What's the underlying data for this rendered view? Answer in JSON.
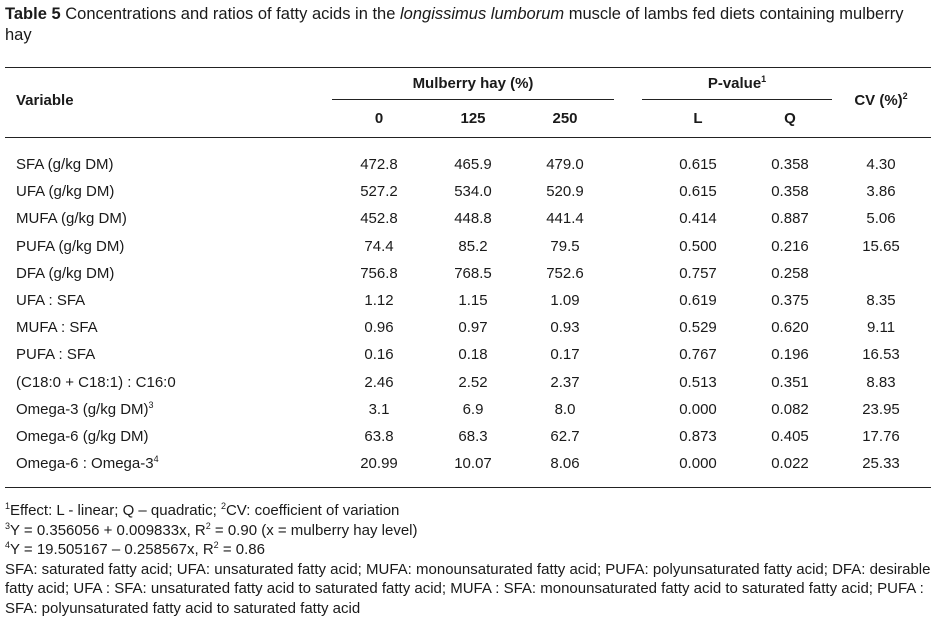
{
  "caption": {
    "label": "Table 5",
    "text_before": " Concentrations and ratios of fatty acids in the ",
    "italic": "longissimus lumborum",
    "text_after": " muscle of lambs fed diets containing mulberry hay"
  },
  "header": {
    "variable": "Variable",
    "mulberry": "Mulberry hay (%)",
    "pvalue": "P-value",
    "pvalue_sup": "1",
    "cv": "CV (%)",
    "cv_sup": "2",
    "sub": [
      "0",
      "125",
      "250",
      "L",
      "Q"
    ]
  },
  "rows": [
    {
      "label": "SFA (g/kg DM)",
      "sup": "",
      "v": [
        "472.8",
        "465.9",
        "479.0",
        "0.615",
        "0.358",
        "4.30"
      ]
    },
    {
      "label": "UFA (g/kg DM)",
      "sup": "",
      "v": [
        "527.2",
        "534.0",
        "520.9",
        "0.615",
        "0.358",
        "3.86"
      ]
    },
    {
      "label": "MUFA (g/kg DM)",
      "sup": "",
      "v": [
        "452.8",
        "448.8",
        "441.4",
        "0.414",
        "0.887",
        "5.06"
      ]
    },
    {
      "label": "PUFA (g/kg DM)",
      "sup": "",
      "v": [
        "74.4",
        "85.2",
        "79.5",
        "0.500",
        "0.216",
        "15.65"
      ]
    },
    {
      "label": "DFA (g/kg DM)",
      "sup": "",
      "v": [
        "756.8",
        "768.5",
        "752.6",
        "0.757",
        "0.258",
        ""
      ]
    },
    {
      "label": "UFA : SFA",
      "sup": "",
      "v": [
        "1.12",
        "1.15",
        "1.09",
        "0.619",
        "0.375",
        "8.35"
      ]
    },
    {
      "label": "MUFA : SFA",
      "sup": "",
      "v": [
        "0.96",
        "0.97",
        "0.93",
        "0.529",
        "0.620",
        "9.11"
      ]
    },
    {
      "label": "PUFA : SFA",
      "sup": "",
      "v": [
        "0.16",
        "0.18",
        "0.17",
        "0.767",
        "0.196",
        "16.53"
      ]
    },
    {
      "label": "(C18:0 + C18:1) : C16:0",
      "sup": "",
      "v": [
        "2.46",
        "2.52",
        "2.37",
        "0.513",
        "0.351",
        "8.83"
      ]
    },
    {
      "label": "Omega-3 (g/kg DM)",
      "sup": "3",
      "v": [
        "3.1",
        "6.9",
        "8.0",
        "0.000",
        "0.082",
        "23.95"
      ]
    },
    {
      "label": "Omega-6 (g/kg DM)",
      "sup": "",
      "v": [
        "63.8",
        "68.3",
        "62.7",
        "0.873",
        "0.405",
        "17.76"
      ]
    },
    {
      "label": "Omega-6 : Omega-3",
      "sup": "4",
      "v": [
        "20.99",
        "10.07",
        "8.06",
        "0.000",
        "0.022",
        "25.33"
      ]
    }
  ],
  "footnotes": {
    "f1_sup": "1",
    "f1": "Effect: L - linear; Q – quadratic; ",
    "f2_sup": "2",
    "f2": "CV: coefficient of variation",
    "f3_sup": "3",
    "f3a": "Y = 0.356056 + 0.009833x, R",
    "f3_r2": "2",
    "f3b": " = 0.90 (x = mulberry hay level)",
    "f4_sup": "4",
    "f4a": "Y = 19.505167 – 0.258567x, R",
    "f4_r2": "2",
    "f4b": " = 0.86",
    "abbrev": "SFA: saturated fatty acid; UFA: unsaturated fatty acid; MUFA: monounsaturated fatty acid; PUFA: polyunsaturated fatty acid; DFA: desirable fatty acid; UFA : SFA: unsaturated fatty acid to saturated fatty acid; MUFA : SFA: monounsaturated fatty acid to saturated fatty acid; PUFA : SFA: polyunsaturated fatty acid to saturated fatty acid"
  }
}
